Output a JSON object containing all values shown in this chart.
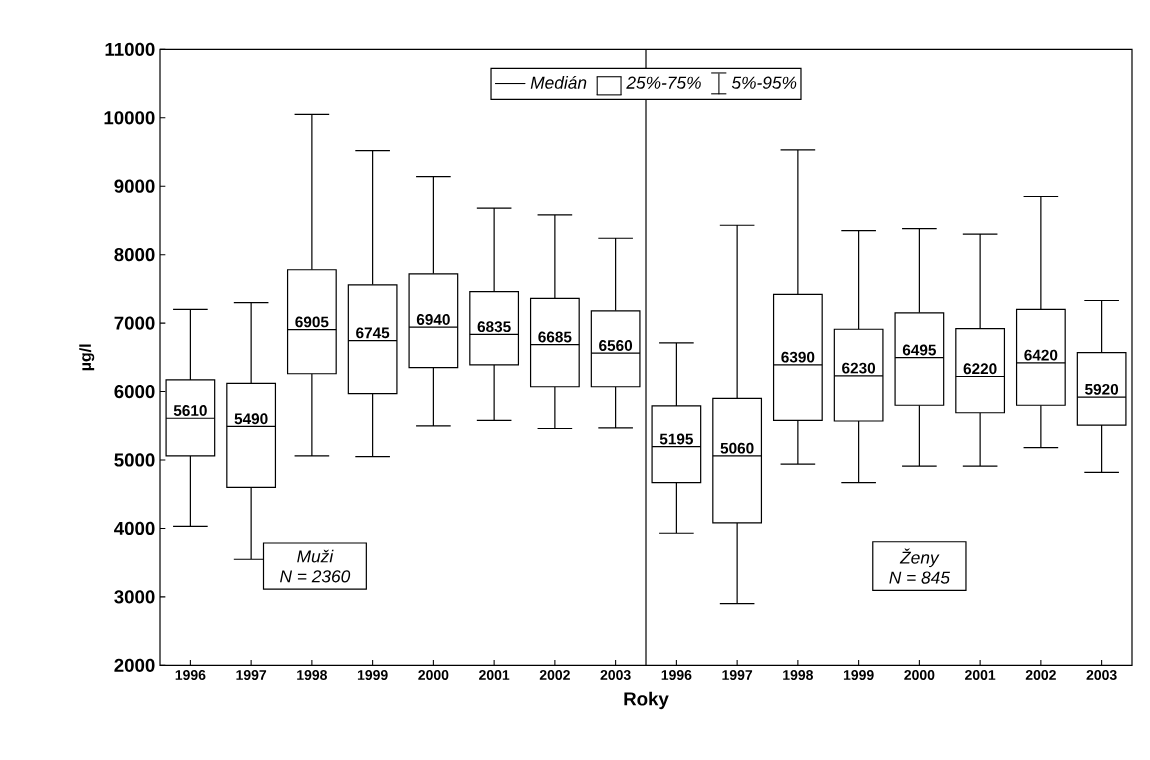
{
  "chart_data": {
    "type": "box",
    "xlabel": "Roky",
    "ylabel": "µg/l",
    "categories": [
      "1996",
      "1997",
      "1998",
      "1999",
      "2000",
      "2001",
      "2002",
      "2003",
      "1996",
      "1997",
      "1998",
      "1999",
      "2000",
      "2001",
      "2002",
      "2003"
    ],
    "boxes": [
      {
        "low": 4030,
        "q1": 5060,
        "median": 5610,
        "q3": 6170,
        "high": 7200
      },
      {
        "low": 3550,
        "q1": 4600,
        "median": 5490,
        "q3": 6120,
        "high": 7300
      },
      {
        "low": 5060,
        "q1": 6260,
        "median": 6905,
        "q3": 7780,
        "high": 10050
      },
      {
        "low": 5050,
        "q1": 5970,
        "median": 6745,
        "q3": 7560,
        "high": 9520
      },
      {
        "low": 5500,
        "q1": 6350,
        "median": 6940,
        "q3": 7720,
        "high": 9140
      },
      {
        "low": 5580,
        "q1": 6390,
        "median": 6835,
        "q3": 7460,
        "high": 8680
      },
      {
        "low": 5460,
        "q1": 6070,
        "median": 6685,
        "q3": 7360,
        "high": 8580
      },
      {
        "low": 5470,
        "q1": 6070,
        "median": 6560,
        "q3": 7180,
        "high": 8240
      },
      {
        "low": 3930,
        "q1": 4670,
        "median": 5195,
        "q3": 5790,
        "high": 6710
      },
      {
        "low": 2900,
        "q1": 4080,
        "median": 5060,
        "q3": 5900,
        "high": 8430
      },
      {
        "low": 4940,
        "q1": 5580,
        "median": 6390,
        "q3": 7420,
        "high": 9530
      },
      {
        "low": 4670,
        "q1": 5570,
        "median": 6230,
        "q3": 6910,
        "high": 8350
      },
      {
        "low": 4910,
        "q1": 5800,
        "median": 6495,
        "q3": 7150,
        "high": 8380
      },
      {
        "low": 4910,
        "q1": 5690,
        "median": 6220,
        "q3": 6920,
        "high": 8300
      },
      {
        "low": 5180,
        "q1": 5800,
        "median": 6420,
        "q3": 7200,
        "high": 8850
      },
      {
        "low": 4820,
        "q1": 5510,
        "median": 5920,
        "q3": 6570,
        "high": 7330
      }
    ],
    "color": "#000000",
    "ylim": [
      2000,
      11000
    ],
    "yticks": [
      2000,
      3000,
      4000,
      5000,
      6000,
      7000,
      8000,
      9000,
      10000,
      11000
    ],
    "value_labels": [
      "5610",
      "5490",
      "6905",
      "6745",
      "6940",
      "6835",
      "6685",
      "6560",
      "5195",
      "5060",
      "6390",
      "6230",
      "6495",
      "6220",
      "6420",
      "5920"
    ],
    "grid": false,
    "annotations": [
      "Medián",
      "25%-75%",
      "5%-95%",
      "Muži",
      "N = 2360",
      "Ženy",
      "N = 845"
    ]
  }
}
